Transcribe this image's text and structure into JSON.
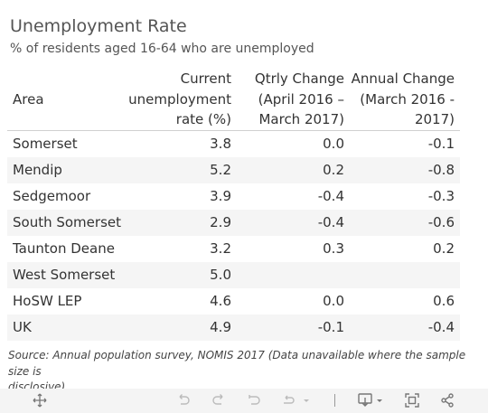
{
  "title": "Unemployment Rate",
  "subtitle": "% of residents aged 16-64 who are unemployed",
  "chart_data": {
    "type": "table",
    "columns": [
      {
        "key": "area",
        "label": "Area"
      },
      {
        "key": "rate",
        "label_lines": [
          "Current",
          "unemployment",
          "rate (%)"
        ]
      },
      {
        "key": "qtr",
        "label_lines": [
          "Qtrly Change",
          "(April 2016 –",
          "March 2017)"
        ]
      },
      {
        "key": "ann",
        "label_lines": [
          "Annual Change",
          "(March 2016 -",
          "2017)"
        ]
      }
    ],
    "rows": [
      {
        "area": "Somerset",
        "rate": "3.8",
        "qtr": "0.0",
        "ann": "-0.1"
      },
      {
        "area": "Mendip",
        "rate": "5.2",
        "qtr": "0.2",
        "ann": "-0.8"
      },
      {
        "area": "Sedgemoor",
        "rate": "3.9",
        "qtr": "-0.4",
        "ann": "-0.3"
      },
      {
        "area": "South Somerset",
        "rate": "2.9",
        "qtr": "-0.4",
        "ann": "-0.6"
      },
      {
        "area": "Taunton Deane",
        "rate": "3.2",
        "qtr": "0.3",
        "ann": "0.2"
      },
      {
        "area": "West Somerset",
        "rate": "5.0",
        "qtr": "",
        "ann": ""
      },
      {
        "area": "HoSW LEP",
        "rate": "4.6",
        "qtr": "0.0",
        "ann": "0.6"
      },
      {
        "area": "UK",
        "rate": "4.9",
        "qtr": "-0.1",
        "ann": "-0.4"
      }
    ]
  },
  "source_lines": [
    "Source: Annual population survey, NOMIS 2017 (Data unavailable where the sample size is",
    "disclosive)."
  ],
  "toolbar": {
    "icons": [
      "move-icon",
      "undo-icon",
      "redo-icon",
      "revert-icon",
      "refresh-icon",
      "download-icon",
      "fullscreen-icon",
      "share-icon"
    ]
  },
  "colors": {
    "text": "#333333",
    "row_alt": "#f5f5f5",
    "toolbar_bg": "#f4f4f4"
  }
}
